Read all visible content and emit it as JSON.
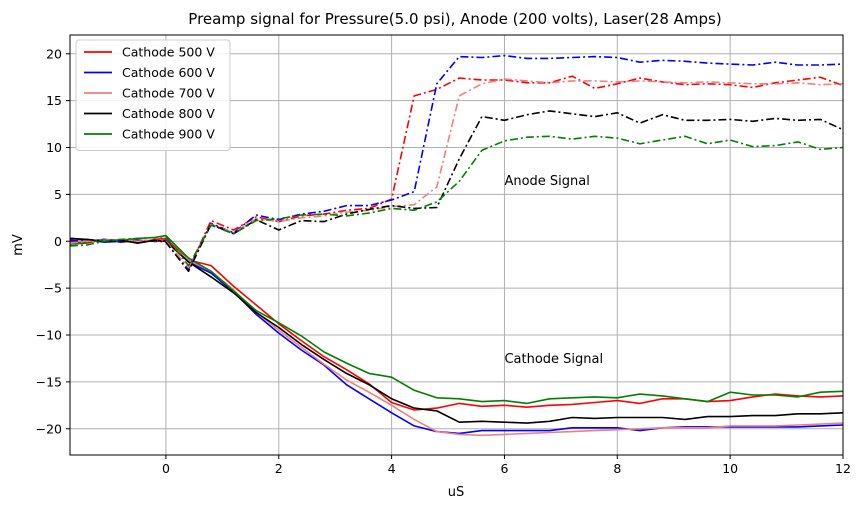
{
  "chart_data": {
    "type": "line",
    "title": "Preamp signal for Pressure(5.0 psi), Anode (200 volts), Laser(28 Amps)",
    "xlabel": "uS",
    "ylabel": "mV",
    "xlim": [
      -1.7,
      12
    ],
    "ylim": [
      -22.8,
      22
    ],
    "xticks": [
      0,
      2,
      4,
      6,
      8,
      10,
      12
    ],
    "yticks": [
      -20,
      -15,
      -10,
      -5,
      0,
      5,
      10,
      15,
      20
    ],
    "grid": true,
    "legend_position": "upper-left",
    "annotations": [
      {
        "text": "Anode Signal",
        "x": 6.0,
        "y": 6.0
      },
      {
        "text": "Cathode Signal",
        "x": 6.0,
        "y": -13.0
      }
    ],
    "series": [
      {
        "name": "Cathode 500 V",
        "color": "#ff0000",
        "style": "solid",
        "x": [
          -1.7,
          -1.4,
          -1.1,
          -0.8,
          -0.5,
          -0.2,
          0,
          0.4,
          0.8,
          1.2,
          1.6,
          2.0,
          2.4,
          2.8,
          3.2,
          3.6,
          4.0,
          4.4,
          4.8,
          5.2,
          5.6,
          6.0,
          6.4,
          6.8,
          7.2,
          7.6,
          8.0,
          8.4,
          8.8,
          9.2,
          9.6,
          10.0,
          10.4,
          10.8,
          11.2,
          11.6,
          12.0
        ],
        "values": [
          -0.2,
          -0.1,
          0.1,
          0.0,
          -0.1,
          0.2,
          0.3,
          -2.0,
          -2.6,
          -4.8,
          -6.8,
          -8.8,
          -10.6,
          -12.3,
          -13.7,
          -15.2,
          -17.2,
          -18.0,
          -17.8,
          -17.3,
          -17.6,
          -17.5,
          -17.7,
          -17.5,
          -17.4,
          -17.2,
          -17.0,
          -17.3,
          -16.8,
          -16.8,
          -17.1,
          -17.0,
          -16.6,
          -16.3,
          -16.5,
          -16.6,
          -16.5
        ]
      },
      {
        "name": "Cathode 600 V",
        "color": "#0000ff",
        "style": "solid",
        "x": [
          -1.7,
          -1.4,
          -1.1,
          -0.8,
          -0.5,
          -0.2,
          0,
          0.4,
          0.8,
          1.2,
          1.6,
          2.0,
          2.4,
          2.8,
          3.2,
          3.6,
          4.0,
          4.4,
          4.8,
          5.2,
          5.6,
          6.0,
          6.4,
          6.8,
          7.2,
          7.6,
          8.0,
          8.4,
          8.8,
          9.2,
          9.6,
          10.0,
          10.4,
          10.8,
          11.2,
          11.6,
          12.0
        ],
        "values": [
          0.0,
          0.2,
          -0.1,
          0.0,
          0.1,
          0.0,
          0.1,
          -2.2,
          -3.4,
          -5.4,
          -7.8,
          -9.8,
          -11.6,
          -13.2,
          -15.3,
          -16.8,
          -18.3,
          -19.7,
          -20.3,
          -20.5,
          -20.2,
          -20.2,
          -20.2,
          -20.2,
          -19.9,
          -19.9,
          -19.9,
          -20.2,
          -19.9,
          -19.8,
          -19.8,
          -19.8,
          -19.8,
          -19.8,
          -19.8,
          -19.7,
          -19.6
        ]
      },
      {
        "name": "Cathode 700 V",
        "color": "#f08080",
        "style": "solid",
        "x": [
          -1.7,
          -1.4,
          -1.1,
          -0.8,
          -0.5,
          -0.2,
          0,
          0.4,
          0.8,
          1.2,
          1.6,
          2.0,
          2.4,
          2.8,
          3.2,
          3.6,
          4.0,
          4.4,
          4.8,
          5.2,
          5.6,
          6.0,
          6.4,
          6.8,
          7.2,
          7.6,
          8.0,
          8.4,
          8.8,
          9.2,
          9.6,
          10.0,
          10.4,
          10.8,
          11.2,
          11.6,
          12.0
        ],
        "values": [
          0.1,
          0.0,
          0.2,
          0.0,
          0.1,
          0.1,
          0.0,
          -2.0,
          -3.2,
          -5.2,
          -7.6,
          -9.5,
          -11.3,
          -13.1,
          -14.8,
          -16.1,
          -17.5,
          -19.0,
          -20.3,
          -20.6,
          -20.7,
          -20.6,
          -20.5,
          -20.4,
          -20.3,
          -20.2,
          -20.1,
          -20.0,
          -19.9,
          -19.9,
          -19.9,
          -19.7,
          -19.7,
          -19.7,
          -19.6,
          -19.5,
          -19.4
        ]
      },
      {
        "name": "Cathode 800 V",
        "color": "#000000",
        "style": "solid",
        "x": [
          -1.7,
          -1.4,
          -1.1,
          -0.8,
          -0.5,
          -0.2,
          0,
          0.4,
          0.8,
          1.2,
          1.6,
          2.0,
          2.4,
          2.8,
          3.2,
          3.6,
          4.0,
          4.4,
          4.8,
          5.2,
          5.6,
          6.0,
          6.4,
          6.8,
          7.2,
          7.6,
          8.0,
          8.4,
          8.8,
          9.2,
          9.6,
          10.0,
          10.4,
          10.8,
          11.2,
          11.6,
          12.0
        ],
        "values": [
          0.3,
          0.2,
          0.0,
          0.1,
          -0.2,
          0.1,
          0.0,
          -2.2,
          -3.8,
          -5.5,
          -7.6,
          -9.2,
          -11.0,
          -12.6,
          -14.1,
          -15.3,
          -16.8,
          -17.8,
          -18.1,
          -19.3,
          -19.2,
          -19.3,
          -19.4,
          -19.2,
          -18.8,
          -18.9,
          -18.8,
          -18.8,
          -18.8,
          -19.0,
          -18.7,
          -18.7,
          -18.6,
          -18.6,
          -18.4,
          -18.4,
          -18.3
        ]
      },
      {
        "name": "Cathode 900 V",
        "color": "#008000",
        "style": "solid",
        "x": [
          -1.7,
          -1.4,
          -1.1,
          -0.8,
          -0.5,
          -0.2,
          0,
          0.4,
          0.8,
          1.2,
          1.6,
          2.0,
          2.4,
          2.8,
          3.2,
          3.6,
          4.0,
          4.4,
          4.8,
          5.2,
          5.6,
          6.0,
          6.4,
          6.8,
          7.2,
          7.6,
          8.0,
          8.4,
          8.8,
          9.2,
          9.6,
          10.0,
          10.4,
          10.8,
          11.2,
          11.6,
          12.0
        ],
        "values": [
          -0.3,
          -0.2,
          0.2,
          0.1,
          0.3,
          0.4,
          0.6,
          -1.8,
          -3.2,
          -5.3,
          -7.4,
          -8.7,
          -10.1,
          -11.8,
          -13.0,
          -14.1,
          -14.5,
          -15.9,
          -16.7,
          -16.8,
          -17.1,
          -17.0,
          -17.3,
          -16.8,
          -16.7,
          -16.6,
          -16.7,
          -16.3,
          -16.5,
          -16.8,
          -17.1,
          -16.1,
          -16.4,
          -16.4,
          -16.6,
          -16.1,
          -16.0
        ]
      },
      {
        "color": "#ff0000",
        "style": "dashdot",
        "x": [
          -1.7,
          -1.4,
          -1.1,
          -0.8,
          -0.5,
          -0.2,
          0,
          0.4,
          0.8,
          1.2,
          1.6,
          2.0,
          2.4,
          2.8,
          3.2,
          3.6,
          4.0,
          4.4,
          4.8,
          5.2,
          5.6,
          6.0,
          6.4,
          6.8,
          7.2,
          7.6,
          8.0,
          8.4,
          8.8,
          9.2,
          9.6,
          10.0,
          10.4,
          10.8,
          11.2,
          11.6,
          12.0
        ],
        "values": [
          0.0,
          -0.1,
          0.1,
          0.0,
          0.1,
          0.0,
          0.0,
          -3.0,
          2.2,
          1.2,
          2.6,
          2.1,
          2.7,
          2.9,
          3.3,
          3.5,
          4.5,
          15.5,
          16.2,
          17.4,
          17.2,
          17.2,
          16.9,
          16.9,
          17.6,
          16.3,
          16.8,
          17.4,
          17.0,
          16.7,
          16.8,
          16.7,
          16.4,
          16.9,
          17.2,
          17.5,
          16.6
        ]
      },
      {
        "color": "#0000ff",
        "style": "dashdot",
        "x": [
          -1.7,
          -1.4,
          -1.1,
          -0.8,
          -0.5,
          -0.2,
          0,
          0.4,
          0.8,
          1.2,
          1.6,
          2.0,
          2.4,
          2.8,
          3.2,
          3.6,
          4.0,
          4.4,
          4.8,
          5.2,
          5.6,
          6.0,
          6.4,
          6.8,
          7.2,
          7.6,
          8.0,
          8.4,
          8.8,
          9.2,
          9.6,
          10.0,
          10.4,
          10.8,
          11.2,
          11.6,
          12.0
        ],
        "values": [
          0.1,
          0.0,
          0.2,
          -0.1,
          0.1,
          0.0,
          0.0,
          -2.9,
          1.9,
          0.9,
          2.8,
          2.3,
          2.9,
          3.2,
          3.8,
          3.8,
          4.4,
          5.3,
          16.8,
          19.7,
          19.6,
          19.8,
          19.5,
          19.5,
          19.6,
          19.7,
          19.6,
          19.1,
          19.3,
          19.2,
          19.0,
          18.9,
          18.8,
          19.1,
          18.8,
          18.8,
          18.9
        ]
      },
      {
        "color": "#f08080",
        "style": "dashdot",
        "x": [
          -1.7,
          -1.4,
          -1.1,
          -0.8,
          -0.5,
          -0.2,
          0,
          0.4,
          0.8,
          1.2,
          1.6,
          2.0,
          2.4,
          2.8,
          3.2,
          3.6,
          4.0,
          4.4,
          4.8,
          5.2,
          5.6,
          6.0,
          6.4,
          6.8,
          7.2,
          7.6,
          8.0,
          8.4,
          8.8,
          9.2,
          9.6,
          10.0,
          10.4,
          10.8,
          11.2,
          11.6,
          12.0
        ],
        "values": [
          -0.2,
          0.0,
          0.1,
          0.2,
          0.0,
          0.1,
          0.0,
          -2.8,
          1.8,
          0.9,
          2.4,
          2.1,
          2.5,
          2.7,
          3.1,
          3.3,
          3.7,
          3.9,
          5.8,
          15.5,
          16.8,
          17.3,
          17.1,
          16.9,
          17.1,
          17.1,
          17.0,
          17.1,
          17.0,
          16.9,
          17.0,
          16.9,
          16.8,
          16.8,
          16.9,
          16.7,
          16.8
        ]
      },
      {
        "color": "#000000",
        "style": "dashdot",
        "x": [
          -1.7,
          -1.4,
          -1.1,
          -0.8,
          -0.5,
          -0.2,
          0,
          0.4,
          0.8,
          1.2,
          1.6,
          2.0,
          2.4,
          2.8,
          3.2,
          3.6,
          4.0,
          4.4,
          4.8,
          5.2,
          5.6,
          6.0,
          6.4,
          6.8,
          7.2,
          7.6,
          8.0,
          8.4,
          8.8,
          9.2,
          9.6,
          10.0,
          10.4,
          10.8,
          11.2,
          11.6,
          12.0
        ],
        "values": [
          0.3,
          0.2,
          0.0,
          0.1,
          -0.2,
          0.1,
          -0.1,
          -3.2,
          1.8,
          0.8,
          2.3,
          1.2,
          2.2,
          2.1,
          2.9,
          3.4,
          3.8,
          3.5,
          3.6,
          8.8,
          13.3,
          12.9,
          13.5,
          13.9,
          13.6,
          13.3,
          13.7,
          12.6,
          13.5,
          12.9,
          12.9,
          13.0,
          12.8,
          13.1,
          12.9,
          13.0,
          11.9
        ]
      },
      {
        "color": "#008000",
        "style": "dashdot",
        "x": [
          -1.7,
          -1.4,
          -1.1,
          -0.8,
          -0.5,
          -0.2,
          0,
          0.4,
          0.8,
          1.2,
          1.6,
          2.0,
          2.4,
          2.8,
          3.2,
          3.6,
          4.0,
          4.4,
          4.8,
          5.2,
          5.6,
          6.0,
          6.4,
          6.8,
          7.2,
          7.6,
          8.0,
          8.4,
          8.8,
          9.2,
          9.6,
          10.0,
          10.4,
          10.8,
          11.2,
          11.6,
          12.0
        ],
        "values": [
          -0.5,
          -0.4,
          0.0,
          0.2,
          0.3,
          0.4,
          0.5,
          -2.6,
          1.7,
          0.8,
          2.2,
          2.4,
          2.8,
          2.9,
          2.7,
          3.0,
          3.5,
          3.3,
          4.2,
          6.4,
          9.7,
          10.7,
          11.1,
          11.2,
          10.9,
          11.2,
          11.0,
          10.4,
          10.8,
          11.2,
          10.4,
          10.8,
          10.1,
          10.2,
          10.6,
          9.8,
          10.0
        ]
      }
    ]
  }
}
